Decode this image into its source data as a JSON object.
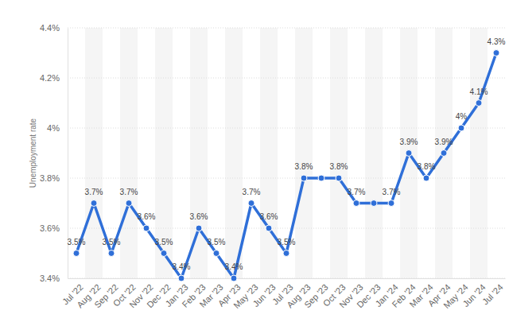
{
  "chart_data": {
    "type": "line",
    "y_label": "Unemployment rate",
    "categories": [
      "Jul '22",
      "Aug '22",
      "Sep '22",
      "Oct '22",
      "Nov '22",
      "Dec '22",
      "Jan '23",
      "Feb '23",
      "Mar '23",
      "Apr '23",
      "May '23",
      "Jun '23",
      "Jul '23",
      "Aug '23",
      "Sep '23",
      "Oct '23",
      "Nov '23",
      "Dec '23",
      "Jan '24",
      "Feb '24",
      "Mar '24",
      "Apr '24",
      "May '24",
      "Jun '24",
      "Jul '24"
    ],
    "values": [
      3.5,
      3.7,
      3.5,
      3.7,
      3.6,
      3.5,
      3.4,
      3.6,
      3.5,
      3.4,
      3.7,
      3.6,
      3.5,
      3.8,
      3.8,
      3.8,
      3.7,
      3.7,
      3.7,
      3.9,
      3.8,
      3.9,
      4.0,
      4.1,
      4.3
    ],
    "value_labels": [
      "3.5%",
      "3.7%",
      "3.5%",
      "3.7%",
      "3.6%",
      "3.5%",
      "3.4%",
      "3.6%",
      "3.5%",
      "3.4%",
      "3.7%",
      "3.6%",
      "3.5%",
      "3.8%",
      null,
      "3.8%",
      "3.7%",
      null,
      "3.7%",
      "3.9%",
      "3.8%",
      "3.9%",
      "4%",
      "4.1%",
      "4.3%"
    ],
    "color": "#2f6fd8",
    "marker": "circle",
    "line_style": "solid",
    "data_labels": true,
    "ylim": [
      3.4,
      4.4
    ],
    "yticks": [
      {
        "value": 3.4,
        "label": "3.4%"
      },
      {
        "value": 3.6,
        "label": "3.6%"
      },
      {
        "value": 3.8,
        "label": "3.8%"
      },
      {
        "value": 4.0,
        "label": "4%"
      },
      {
        "value": 4.2,
        "label": "4.2%"
      },
      {
        "value": 4.4,
        "label": "4.4%"
      }
    ],
    "grid": true
  }
}
